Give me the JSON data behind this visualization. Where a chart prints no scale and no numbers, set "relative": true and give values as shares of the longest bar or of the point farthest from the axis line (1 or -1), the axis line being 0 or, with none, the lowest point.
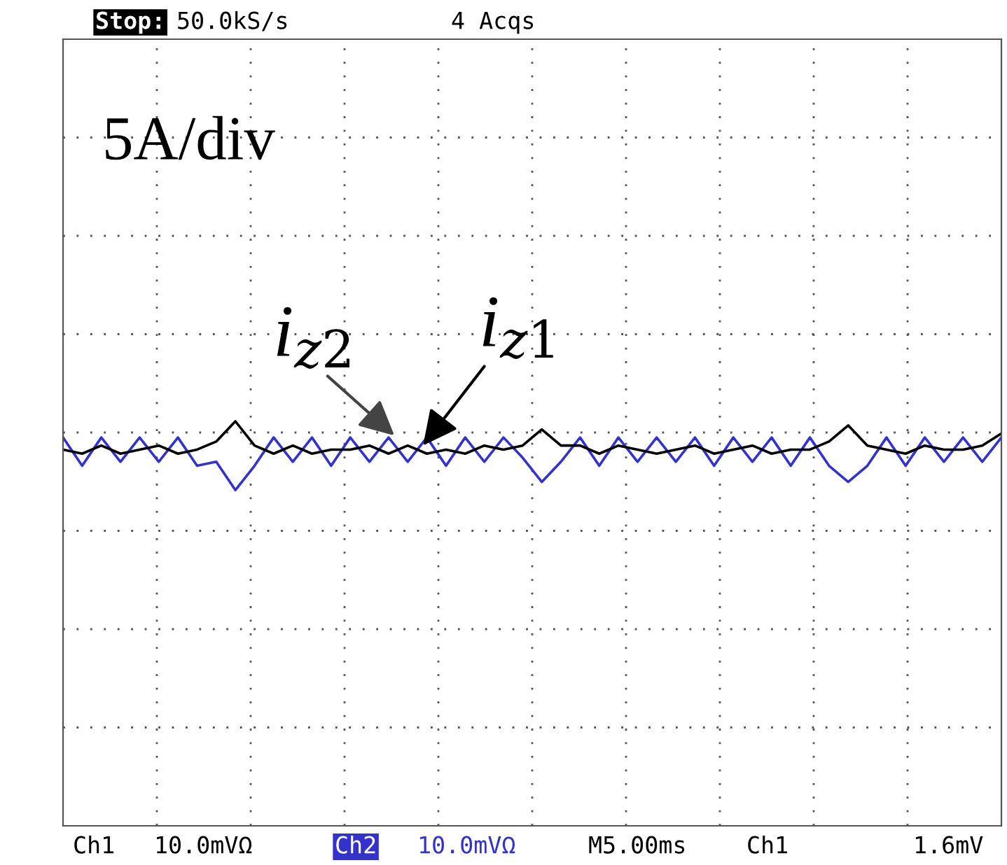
{
  "chart_data": {
    "type": "line",
    "relative": true,
    "grid": true,
    "tick_labels": false,
    "legend": false,
    "categories": [
      null,
      null,
      null,
      null,
      null,
      null,
      null,
      null,
      null,
      null,
      null,
      null,
      null,
      null,
      null,
      null,
      null,
      null,
      null,
      null,
      null,
      null,
      null,
      null,
      null,
      null,
      null,
      null,
      null,
      null,
      null,
      null,
      null,
      null,
      null,
      null,
      null,
      null,
      null,
      null,
      null,
      null,
      null,
      null,
      null,
      null,
      null,
      null,
      null,
      null
    ],
    "series": [
      {
        "color": "#3333cc",
        "values": [
          0.96,
          0.89,
          0.96,
          0.9,
          0.96,
          0.9,
          0.96,
          0.89,
          0.9,
          0.83,
          0.89,
          0.96,
          0.9,
          0.96,
          0.89,
          0.96,
          0.9,
          0.96,
          0.9,
          0.96,
          0.89,
          0.96,
          0.9,
          0.96,
          0.91,
          0.85,
          0.9,
          0.96,
          0.89,
          0.96,
          0.9,
          0.96,
          0.9,
          0.96,
          0.89,
          0.96,
          0.9,
          0.96,
          0.89,
          0.96,
          0.89,
          0.85,
          0.89,
          0.96,
          0.89,
          0.96,
          0.9,
          0.96,
          0.9,
          0.96
        ]
      },
      {
        "color": "#000000",
        "values": [
          0.93,
          0.92,
          0.94,
          0.92,
          0.93,
          0.94,
          0.92,
          0.93,
          0.95,
          1,
          0.94,
          0.92,
          0.94,
          0.92,
          0.93,
          0.93,
          0.94,
          0.92,
          0.94,
          0.92,
          0.93,
          0.92,
          0.94,
          0.93,
          0.94,
          0.98,
          0.94,
          0.94,
          0.92,
          0.94,
          0.93,
          0.92,
          0.93,
          0.94,
          0.92,
          0.93,
          0.94,
          0.92,
          0.93,
          0.93,
          0.95,
          0.99,
          0.94,
          0.93,
          0.92,
          0.94,
          0.93,
          0.93,
          0.94,
          0.97
        ]
      }
    ],
    "annotations": [
      "Stop:",
      "50.0kS/s",
      "4 Acqs",
      "5A/div",
      "i$_{z2}$",
      "i$_{z1}$",
      "Ch1",
      "10.0mVΩ",
      "Ch2",
      "10.0mVΩ",
      "M5.00ms",
      "Ch1",
      "1.6mV"
    ]
  }
}
